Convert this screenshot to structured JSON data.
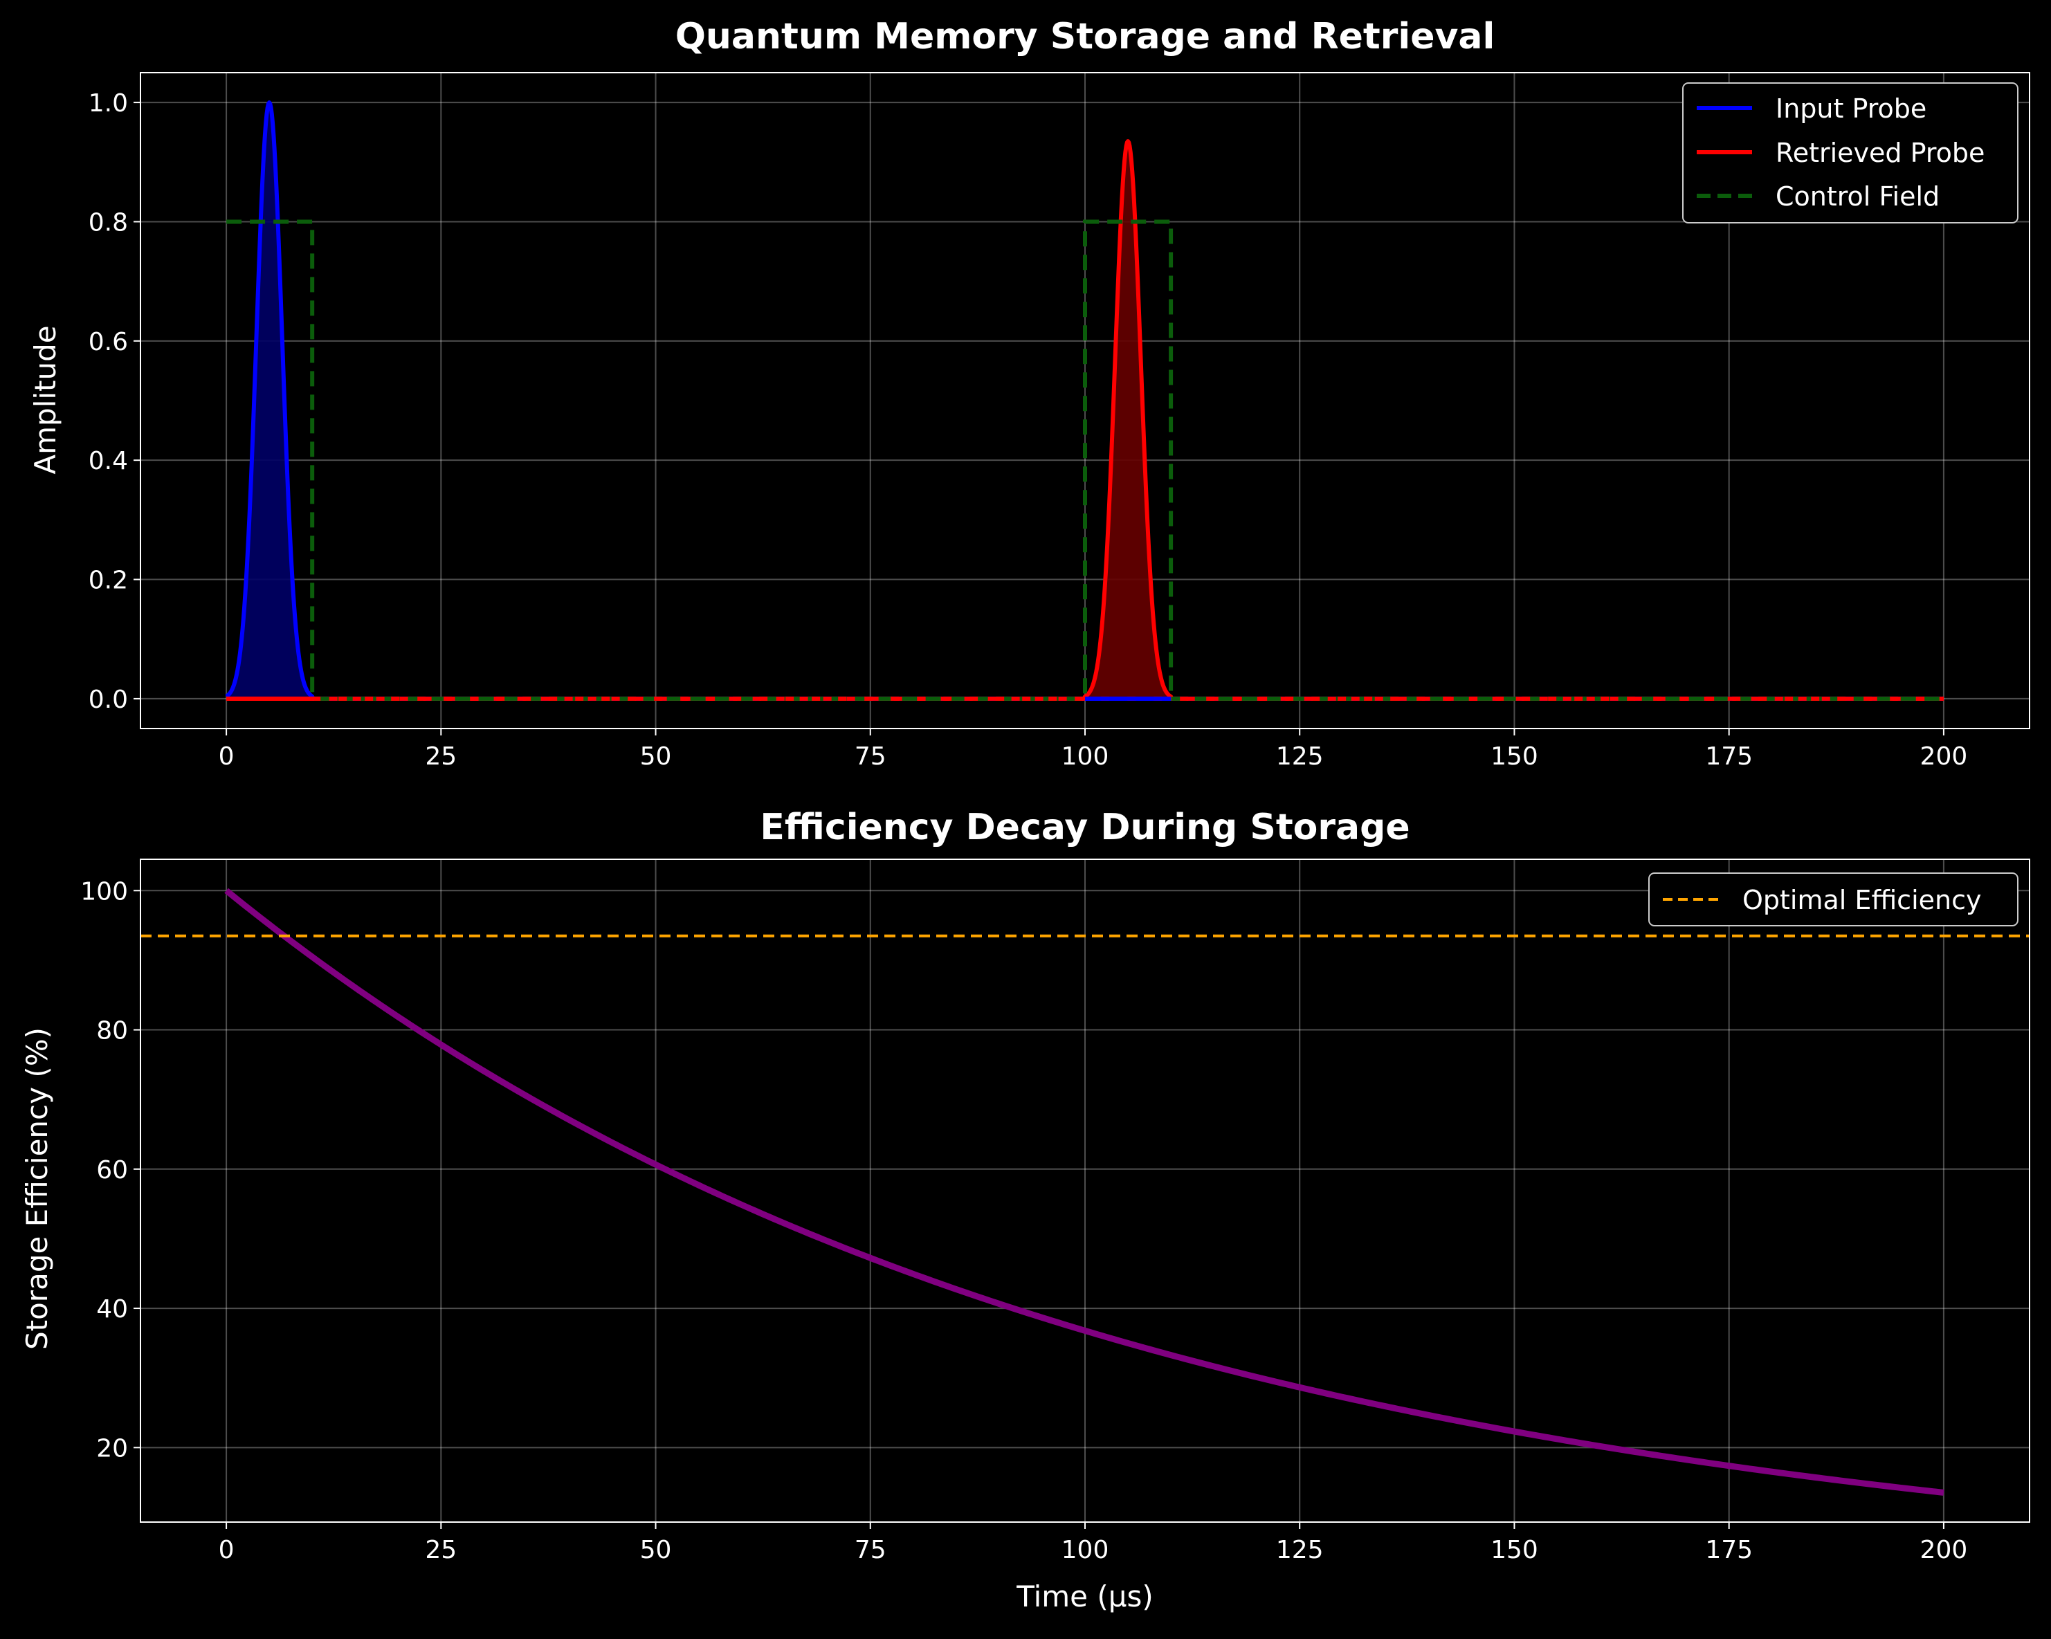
{
  "colors": {
    "background": "#000000",
    "input_probe": "#0000ff",
    "input_fill": "#000066",
    "retrieved_probe": "#ff0000",
    "retrieved_fill": "#660000",
    "control_field": "#0b5d0b",
    "efficiency": "#800080",
    "optimal": "#ffa500",
    "grid": "#ffffff"
  },
  "chart_data": [
    {
      "type": "line",
      "title": "Quantum Memory Storage and Retrieval",
      "xlabel": "",
      "ylabel": "Amplitude",
      "xlim": [
        -10,
        210
      ],
      "ylim": [
        -0.05,
        1.05
      ],
      "xticks": [
        0,
        25,
        50,
        75,
        100,
        125,
        150,
        175,
        200
      ],
      "yticks": [
        0.0,
        0.2,
        0.4,
        0.6,
        0.8,
        1.0
      ],
      "ytick_labels": [
        "0.0",
        "0.2",
        "0.4",
        "0.6",
        "0.8",
        "1.0"
      ],
      "grid": true,
      "legend_position": "top-right",
      "series": [
        {
          "name": "Input Probe",
          "color": "#0000ff",
          "fill": true,
          "pulse": {
            "center": 5,
            "sigma": 1.5,
            "amplitude": 1.0,
            "window": [
              0,
              10
            ]
          }
        },
        {
          "name": "Retrieved Probe",
          "color": "#ff0000",
          "fill": true,
          "pulse": {
            "center": 105,
            "sigma": 1.5,
            "amplitude": 0.935,
            "window": [
              100,
              110
            ]
          }
        },
        {
          "name": "Control Field",
          "color": "#0b5d0b",
          "dashed": true,
          "segments": [
            {
              "x": [
                0,
                10
              ],
              "y": 0.8
            },
            {
              "x": [
                100,
                110
              ],
              "y": 0.8
            }
          ]
        }
      ]
    },
    {
      "type": "line",
      "title": "Efficiency Decay During Storage",
      "xlabel": "Time (μs)",
      "ylabel": "Storage Efficiency (%)",
      "xlim": [
        -10,
        210
      ],
      "ylim": [
        9.3,
        104.5
      ],
      "xticks": [
        0,
        25,
        50,
        75,
        100,
        125,
        150,
        175,
        200
      ],
      "yticks": [
        20,
        40,
        60,
        80,
        100
      ],
      "ytick_labels": [
        "20",
        "40",
        "60",
        "80",
        "100"
      ],
      "grid": true,
      "legend_position": "top-right",
      "series": [
        {
          "name": "",
          "color": "#800080",
          "decay": {
            "initial": 100,
            "tau": 100,
            "x_range": [
              0,
              200
            ]
          }
        },
        {
          "name": "Optimal Efficiency",
          "color": "#ffa500",
          "dashed": true,
          "hline": 93.5
        }
      ]
    }
  ]
}
